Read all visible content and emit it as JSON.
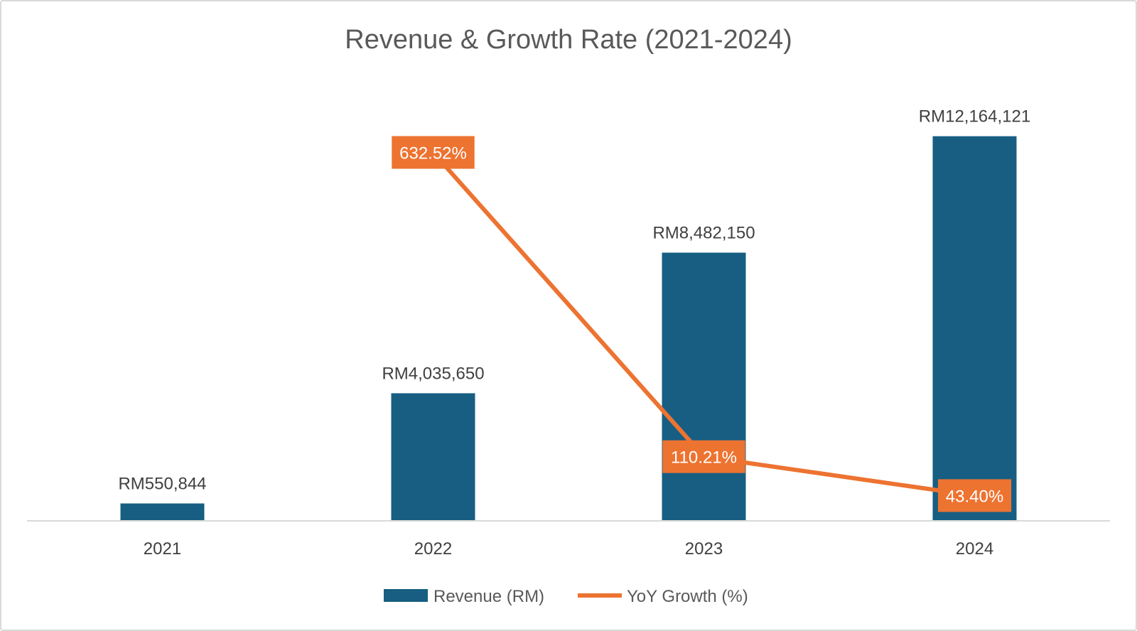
{
  "chart_data": {
    "type": "bar",
    "title": "Revenue & Growth Rate (2021-2024)",
    "categories": [
      "2021",
      "2022",
      "2023",
      "2024"
    ],
    "series": [
      {
        "name": "Revenue (RM)",
        "kind": "bar",
        "values": [
          550844,
          4035650,
          8482150,
          12164121
        ],
        "labels": [
          "RM550,844",
          "RM4,035,650",
          "RM8,482,150",
          "RM12,164,121"
        ]
      },
      {
        "name": "YoY Growth (%)",
        "kind": "line",
        "values": [
          null,
          632.52,
          110.21,
          43.4
        ],
        "labels": [
          "",
          "632.52%",
          "110.21%",
          "43.40%"
        ]
      }
    ],
    "ylim": [
      0,
      14000000
    ],
    "y2lim": [
      0,
      760
    ],
    "grid": false,
    "legend": "bottom",
    "colors": {
      "bar": "#175e82",
      "line": "#ed7331",
      "axis": "#d9d9d9"
    }
  }
}
